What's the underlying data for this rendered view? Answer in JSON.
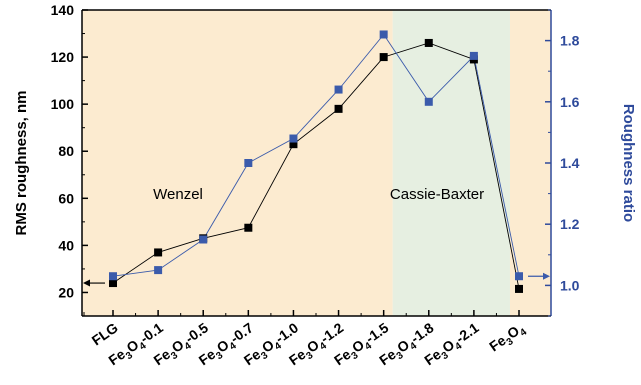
{
  "chart_data": {
    "type": "scatter",
    "categories": [
      "FLG",
      "Fe3O4-0.1",
      "Fe3O4-0.5",
      "Fe3O4-0.7",
      "Fe3O4-1.0",
      "Fe3O4-1.2",
      "Fe3O4-1.5",
      "Fe3O4-1.8",
      "Fe3O4-2.1",
      "Fe3O4"
    ],
    "category_labels": [
      [
        {
          "t": "FLG",
          "sub": false
        }
      ],
      [
        {
          "t": "Fe",
          "sub": false
        },
        {
          "t": "3",
          "sub": true
        },
        {
          "t": "O",
          "sub": false
        },
        {
          "t": "4",
          "sub": true
        },
        {
          "t": "-0.1",
          "sub": false
        }
      ],
      [
        {
          "t": "Fe",
          "sub": false
        },
        {
          "t": "3",
          "sub": true
        },
        {
          "t": "O",
          "sub": false
        },
        {
          "t": "4",
          "sub": true
        },
        {
          "t": "-0.5",
          "sub": false
        }
      ],
      [
        {
          "t": "Fe",
          "sub": false
        },
        {
          "t": "3",
          "sub": true
        },
        {
          "t": "O",
          "sub": false
        },
        {
          "t": "4",
          "sub": true
        },
        {
          "t": "-0.7",
          "sub": false
        }
      ],
      [
        {
          "t": "Fe",
          "sub": false
        },
        {
          "t": "3",
          "sub": true
        },
        {
          "t": "O",
          "sub": false
        },
        {
          "t": "4",
          "sub": true
        },
        {
          "t": "-1.0",
          "sub": false
        }
      ],
      [
        {
          "t": "Fe",
          "sub": false
        },
        {
          "t": "3",
          "sub": true
        },
        {
          "t": "O",
          "sub": false
        },
        {
          "t": "4",
          "sub": true
        },
        {
          "t": "-1.2",
          "sub": false
        }
      ],
      [
        {
          "t": "Fe",
          "sub": false
        },
        {
          "t": "3",
          "sub": true
        },
        {
          "t": "O",
          "sub": false
        },
        {
          "t": "4",
          "sub": true
        },
        {
          "t": "-1.5",
          "sub": false
        }
      ],
      [
        {
          "t": "Fe",
          "sub": false
        },
        {
          "t": "3",
          "sub": true
        },
        {
          "t": "O",
          "sub": false
        },
        {
          "t": "4",
          "sub": true
        },
        {
          "t": "-1.8",
          "sub": false
        }
      ],
      [
        {
          "t": "Fe",
          "sub": false
        },
        {
          "t": "3",
          "sub": true
        },
        {
          "t": "O",
          "sub": false
        },
        {
          "t": "4",
          "sub": true
        },
        {
          "t": "-2.1",
          "sub": false
        }
      ],
      [
        {
          "t": "Fe",
          "sub": false
        },
        {
          "t": "3",
          "sub": true
        },
        {
          "t": "O",
          "sub": false
        },
        {
          "t": "4",
          "sub": true
        }
      ]
    ],
    "series": [
      {
        "axis": "left",
        "marker": "square",
        "color": "#000000",
        "values": [
          24,
          37,
          43,
          47.5,
          83,
          98,
          120,
          126,
          119,
          21.5
        ]
      },
      {
        "axis": "right",
        "marker": "square",
        "color": "#3b5bab",
        "values": [
          1.03,
          1.05,
          1.15,
          1.4,
          1.48,
          1.64,
          1.82,
          1.6,
          1.75,
          1.03
        ]
      }
    ],
    "ylabel": "RMS roughness, nm",
    "ylim": [
      10,
      140
    ],
    "yticks": [
      20,
      40,
      60,
      80,
      100,
      120,
      140
    ],
    "y2label": "Roughness ratio",
    "y2lim": [
      0.9,
      1.9
    ],
    "y2ticks": [
      1.0,
      1.2,
      1.4,
      1.6,
      1.8
    ],
    "regions": [
      {
        "label": "Wenzel",
        "from_category": "start",
        "to_category_boundary": 6.2,
        "color": "#fcebd0"
      },
      {
        "label": "Cassie-Baxter",
        "from_category_boundary": 6.2,
        "to_category_boundary": 8.8,
        "color": "#e6efe1"
      },
      {
        "label": "",
        "from_category_boundary": 8.8,
        "to_category": "end",
        "color": "#fcebd0"
      }
    ],
    "axis_arrows": {
      "left_series_points": "left",
      "right_series_points": "right"
    },
    "grid": false,
    "colors": {
      "left_axis": "#000000",
      "right_axis": "#2e4a9b",
      "wenzel_bg": "#fcebd0",
      "cassie_bg": "#e6efe1"
    }
  }
}
